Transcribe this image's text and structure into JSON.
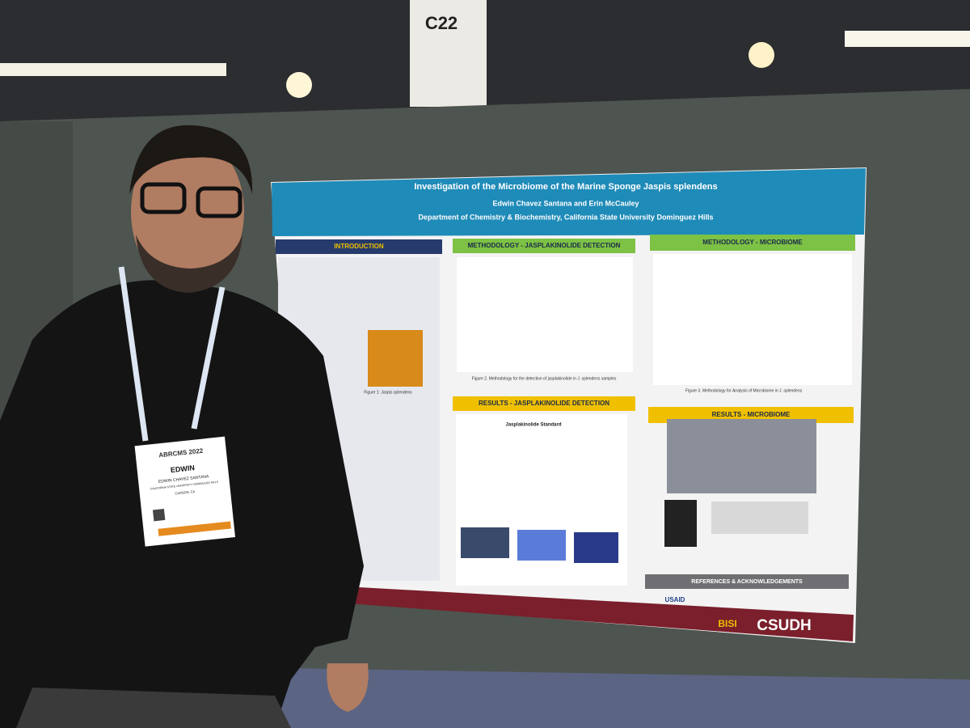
{
  "sign": {
    "label": "C22"
  },
  "poster": {
    "title": "Investigation of the Microbiome of the Marine Sponge Jaspis splendens",
    "authors": "Edwin Chavez Santana and Erin McCauley",
    "affiliation": "Department of Chemistry & Biochemistry, California State University Dominguez Hills",
    "sections": {
      "introduction": "INTRODUCTION",
      "method_jasplakinolide": "METHODOLOGY - JASPLAKINOLIDE DETECTION",
      "method_microbiome": "METHODOLOGY - MICROBIOME",
      "results_jasplakinolide": "RESULTS - JASPLAKINOLIDE DETECTION",
      "results_microbiome": "RESULTS - MICROBIOME",
      "references": "REFERENCES & ACKNOWLEDGEMENTS"
    },
    "figures": {
      "figure1": "Figure 1: Jaspis splendens",
      "figure2": "Figure 2. Methodology for the detection of jasplakinolide in J. splendens samples",
      "figure3": "Figure 3. Methodology for Analysis of Microbiome in J. splendens",
      "standard": "Jasplakinolide Standard"
    },
    "footer": {
      "logo": "CSUDH",
      "bisi": "BISI",
      "usaid": "USAID"
    }
  },
  "badge": {
    "event": "ABRCMS 2022",
    "first_name": "EDWIN",
    "full_name": "EDWIN CHAVEZ SANTANA",
    "school": "CALIFORNIA STATE UNIVERSITY DOMINGUEZ HILLS",
    "city": "CARSON, CA"
  }
}
